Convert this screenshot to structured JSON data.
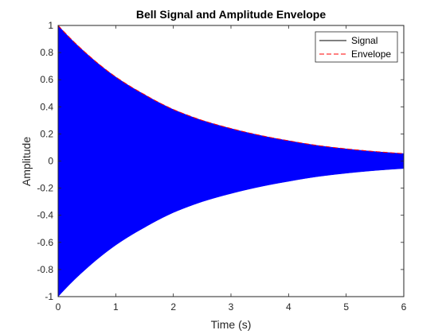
{
  "chart_data": {
    "type": "line",
    "title": "Bell Signal and Amplitude Envelope",
    "xlabel": "Time (s)",
    "ylabel": "Amplitude",
    "xlim": [
      0,
      6
    ],
    "ylim": [
      -1,
      1
    ],
    "xticks": [
      0,
      1,
      2,
      3,
      4,
      5,
      6
    ],
    "xtick_labels": [
      "0",
      "1",
      "2",
      "3",
      "4",
      "5",
      "6"
    ],
    "yticks": [
      -1,
      -0.8,
      -0.6,
      -0.4,
      -0.2,
      0,
      0.2,
      0.4,
      0.6,
      0.8,
      1
    ],
    "ytick_labels": [
      "-1",
      "-0.8",
      "-0.6",
      "-0.4",
      "-0.2",
      "0",
      "0.2",
      "0.4",
      "0.6",
      "0.8",
      "1"
    ],
    "grid": false,
    "legend_position": "top-right",
    "series": [
      {
        "name": "Signal",
        "color": "#0000ff",
        "legend_color": "#000000",
        "style": "solid",
        "description_values": "dense oscillation bounded by +/- envelope",
        "x": [
          0,
          0.5,
          1,
          1.5,
          2,
          2.5,
          3,
          3.5,
          4,
          4.5,
          5,
          5.5,
          6
        ],
        "upper": [
          1.0,
          0.79,
          0.62,
          0.49,
          0.38,
          0.3,
          0.24,
          0.19,
          0.15,
          0.115,
          0.09,
          0.07,
          0.055
        ],
        "lower": [
          -1.0,
          -0.79,
          -0.62,
          -0.49,
          -0.38,
          -0.3,
          -0.24,
          -0.19,
          -0.15,
          -0.115,
          -0.09,
          -0.07,
          -0.055
        ]
      },
      {
        "name": "Envelope",
        "color": "#ff0000",
        "style": "dashed",
        "x": [
          0,
          0.5,
          1,
          1.5,
          2,
          2.5,
          3,
          3.5,
          4,
          4.5,
          5,
          5.5,
          6
        ],
        "values": [
          1.0,
          0.79,
          0.62,
          0.49,
          0.38,
          0.3,
          0.24,
          0.19,
          0.15,
          0.115,
          0.09,
          0.07,
          0.055
        ]
      }
    ]
  }
}
